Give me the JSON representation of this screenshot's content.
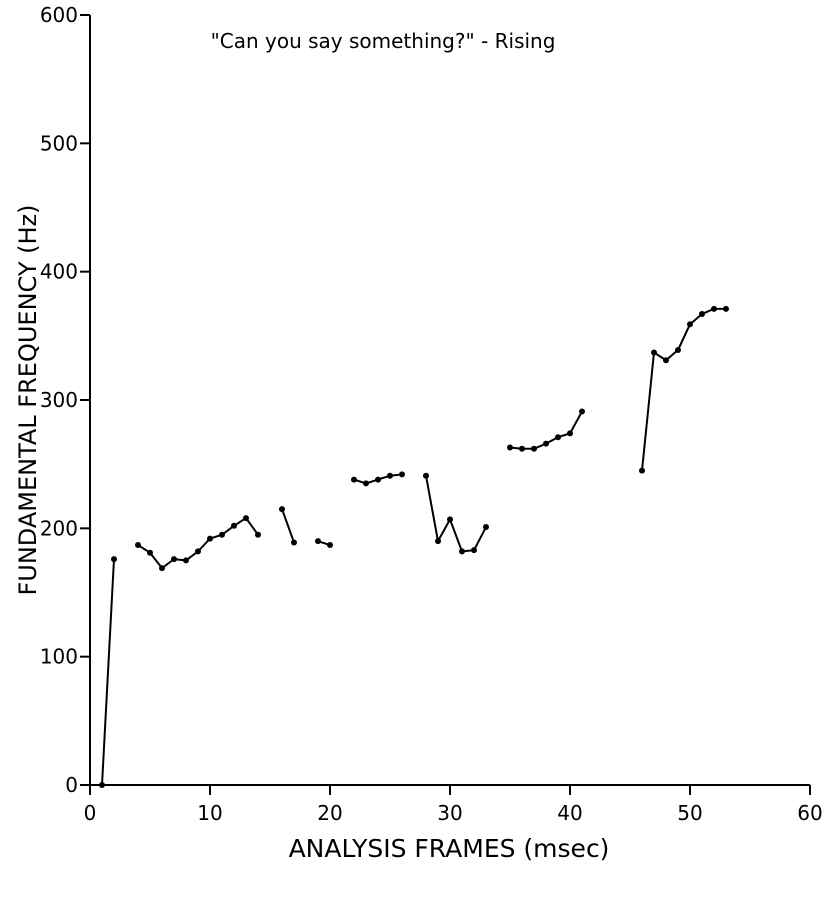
{
  "chart_data": {
    "type": "line",
    "title": "\"Can you say something?\" - Rising",
    "x_label": "ANALYSIS FRAMES (msec)",
    "y_label": "FUNDAMENTAL FREQUENCY (Hz)",
    "x": [
      1,
      2,
      3,
      4,
      5,
      6,
      7,
      8,
      9,
      10,
      11,
      12,
      13,
      14,
      15,
      16,
      17,
      18,
      19,
      20,
      21,
      22,
      23,
      24,
      25,
      26,
      27,
      28,
      29,
      30,
      31,
      32,
      33,
      34,
      35,
      36,
      37,
      38,
      39,
      40,
      41,
      42,
      43,
      44,
      45,
      46,
      47,
      48,
      49,
      50,
      51,
      52,
      53
    ],
    "series": [
      {
        "color": "#000000",
        "values": [
          0,
          176,
          null,
          187,
          181,
          169,
          176,
          175,
          182,
          192,
          195,
          202,
          208,
          195,
          null,
          215,
          189,
          null,
          190,
          187,
          null,
          238,
          235,
          238,
          241,
          242,
          null,
          241,
          190,
          207,
          182,
          183,
          201,
          null,
          263,
          262,
          262,
          266,
          271,
          274,
          291,
          null,
          null,
          null,
          null,
          245,
          337,
          331,
          339,
          359,
          367,
          371,
          371
        ]
      }
    ],
    "xlim": [
      0,
      60
    ],
    "xticks": [
      0,
      10,
      20,
      30,
      40,
      50,
      60
    ],
    "ylim": [
      0,
      600
    ],
    "yticks": [
      0,
      100,
      200,
      300,
      400,
      500,
      600
    ]
  }
}
